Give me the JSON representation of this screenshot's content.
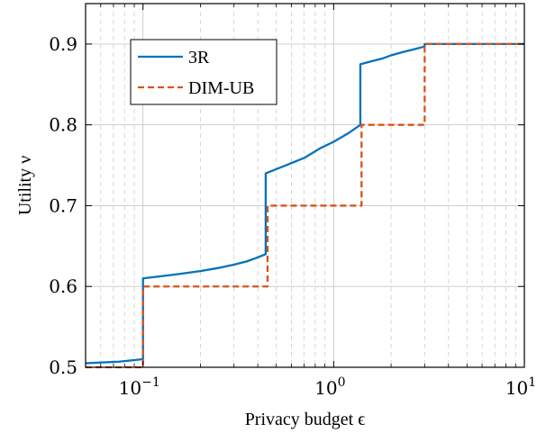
{
  "chart_data": {
    "type": "line",
    "xscale": "log",
    "xlim": [
      0.05,
      10
    ],
    "ylim": [
      0.5,
      0.95
    ],
    "xlabel": "Privacy budget ϵ",
    "ylabel": "Utility ν",
    "x_ticks": [
      {
        "value": 0.1,
        "base": "10",
        "exp": "−1"
      },
      {
        "value": 1,
        "base": "10",
        "exp": "0"
      },
      {
        "value": 10,
        "base": "10",
        "exp": "1"
      }
    ],
    "y_ticks": [
      {
        "value": 0.5,
        "label": "0.5"
      },
      {
        "value": 0.6,
        "label": "0.6"
      },
      {
        "value": 0.7,
        "label": "0.7"
      },
      {
        "value": 0.8,
        "label": "0.8"
      },
      {
        "value": 0.9,
        "label": "0.9"
      }
    ],
    "grid": true,
    "legend_position": "top-left",
    "series": [
      {
        "name": "3R",
        "color": "#0072bd",
        "style": "solid",
        "points": [
          [
            0.05,
            0.505
          ],
          [
            0.075,
            0.507
          ],
          [
            0.1,
            0.51
          ],
          [
            0.1,
            0.61
          ],
          [
            0.15,
            0.615
          ],
          [
            0.2,
            0.619
          ],
          [
            0.25,
            0.623
          ],
          [
            0.3,
            0.627
          ],
          [
            0.35,
            0.631
          ],
          [
            0.4,
            0.636
          ],
          [
            0.44,
            0.64
          ],
          [
            0.44,
            0.74
          ],
          [
            0.55,
            0.749
          ],
          [
            0.7,
            0.759
          ],
          [
            0.85,
            0.771
          ],
          [
            1.0,
            0.779
          ],
          [
            1.2,
            0.79
          ],
          [
            1.38,
            0.8
          ],
          [
            1.38,
            0.875
          ],
          [
            1.6,
            0.879
          ],
          [
            1.8,
            0.882
          ],
          [
            2.0,
            0.886
          ],
          [
            2.3,
            0.89
          ],
          [
            2.6,
            0.893
          ],
          [
            3.0,
            0.897
          ],
          [
            3.0,
            0.9
          ],
          [
            10,
            0.9
          ]
        ]
      },
      {
        "name": "DIM-UB",
        "color": "#d95319",
        "style": "dashed",
        "points": [
          [
            0.05,
            0.5
          ],
          [
            0.1,
            0.5
          ],
          [
            0.1,
            0.6
          ],
          [
            0.45,
            0.6
          ],
          [
            0.45,
            0.7
          ],
          [
            1.4,
            0.7
          ],
          [
            1.4,
            0.8
          ],
          [
            3.0,
            0.8
          ],
          [
            3.0,
            0.9
          ],
          [
            10,
            0.9
          ]
        ]
      }
    ]
  }
}
